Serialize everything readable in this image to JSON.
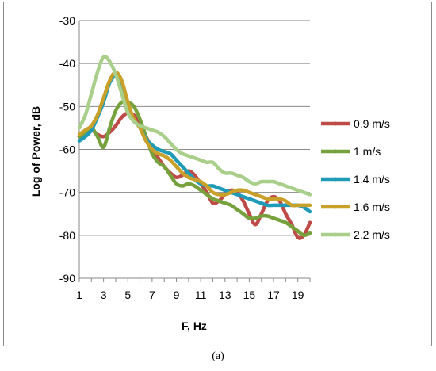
{
  "caption": "(a)",
  "chart_data": {
    "type": "line",
    "xlabel": "F, Hz",
    "ylabel": "Log of Power, dB",
    "xlim": [
      1,
      20
    ],
    "ylim": [
      -90,
      -30
    ],
    "x_ticks": [
      "1",
      "3",
      "5",
      "7",
      "9",
      "11",
      "13",
      "15",
      "17",
      "19"
    ],
    "y_ticks": [
      "-30",
      "-40",
      "-50",
      "-60",
      "-70",
      "-80",
      "-90"
    ],
    "grid": "horizontal",
    "legend": "right",
    "x": [
      1,
      1.5,
      2,
      2.5,
      3,
      3.5,
      4,
      4.5,
      5,
      5.5,
      6,
      6.5,
      7,
      7.5,
      8,
      8.5,
      9,
      9.5,
      10,
      10.5,
      11,
      11.5,
      12,
      12.5,
      13,
      13.5,
      14,
      14.5,
      15,
      15.5,
      16,
      16.5,
      17,
      17.5,
      18,
      18.5,
      19,
      19.5,
      20
    ],
    "series": [
      {
        "name": "0.9 m/s",
        "color": "#be4b48",
        "values": [
          -57,
          -56.5,
          -55.5,
          -56.5,
          -57,
          -56,
          -54.5,
          -52.5,
          -51.5,
          -52,
          -54,
          -57,
          -60,
          -62,
          -64,
          -65.5,
          -66.5,
          -66,
          -65,
          -66,
          -68,
          -70,
          -72.5,
          -72,
          -70.5,
          -69.5,
          -70,
          -72,
          -75,
          -77.5,
          -75,
          -72,
          -71,
          -72,
          -75,
          -77.5,
          -80.5,
          -80,
          -77
        ]
      },
      {
        "name": "1 m/s",
        "color": "#77a13c",
        "values": [
          -57,
          -56,
          -55,
          -57,
          -59.5,
          -55,
          -51,
          -49,
          -49,
          -50,
          -53,
          -57,
          -61,
          -63,
          -64,
          -66,
          -68,
          -68.5,
          -68,
          -68.5,
          -69.5,
          -70.5,
          -71.5,
          -72,
          -72.5,
          -73,
          -74,
          -75,
          -76,
          -76,
          -75.5,
          -75.5,
          -76,
          -76.5,
          -77,
          -78,
          -79,
          -80,
          -79.5
        ]
      },
      {
        "name": "1.4 m/s",
        "color": "#1f9bb8",
        "values": [
          -58,
          -57,
          -55.5,
          -52.5,
          -49,
          -44.5,
          -43,
          -45,
          -50,
          -53,
          -55,
          -57.5,
          -59,
          -60,
          -60.5,
          -61,
          -62.5,
          -64,
          -65.5,
          -67,
          -68,
          -68.5,
          -68.5,
          -69,
          -69.5,
          -70,
          -70.5,
          -71,
          -71.5,
          -72,
          -72.5,
          -73,
          -73,
          -73,
          -73,
          -73,
          -73,
          -73.5,
          -74.5
        ]
      },
      {
        "name": "1.6 m/s",
        "color": "#c8a02a",
        "values": [
          -56.5,
          -55.5,
          -54.5,
          -52,
          -48,
          -44,
          -42,
          -44,
          -49,
          -53,
          -55,
          -58,
          -60,
          -61,
          -61.5,
          -62.5,
          -64,
          -65.5,
          -66.5,
          -67,
          -67.5,
          -68.5,
          -70,
          -70.5,
          -70.5,
          -70,
          -69.5,
          -69.5,
          -70,
          -70.5,
          -71,
          -71.5,
          -71.5,
          -71.5,
          -72,
          -73,
          -73,
          -73,
          -73
        ]
      },
      {
        "name": "2.2 m/s",
        "color": "#a9cf8a",
        "values": [
          -55,
          -52,
          -47,
          -42,
          -38.5,
          -39.5,
          -42.5,
          -47,
          -51.5,
          -53.5,
          -54.5,
          -55,
          -55.5,
          -56,
          -57,
          -58.5,
          -60,
          -61,
          -61.5,
          -62,
          -62.5,
          -63,
          -63,
          -64.5,
          -65.5,
          -65.5,
          -66,
          -66.5,
          -67.5,
          -68,
          -67.5,
          -67.5,
          -67.5,
          -68,
          -68.5,
          -69,
          -69.5,
          -70,
          -70.5
        ]
      }
    ]
  }
}
